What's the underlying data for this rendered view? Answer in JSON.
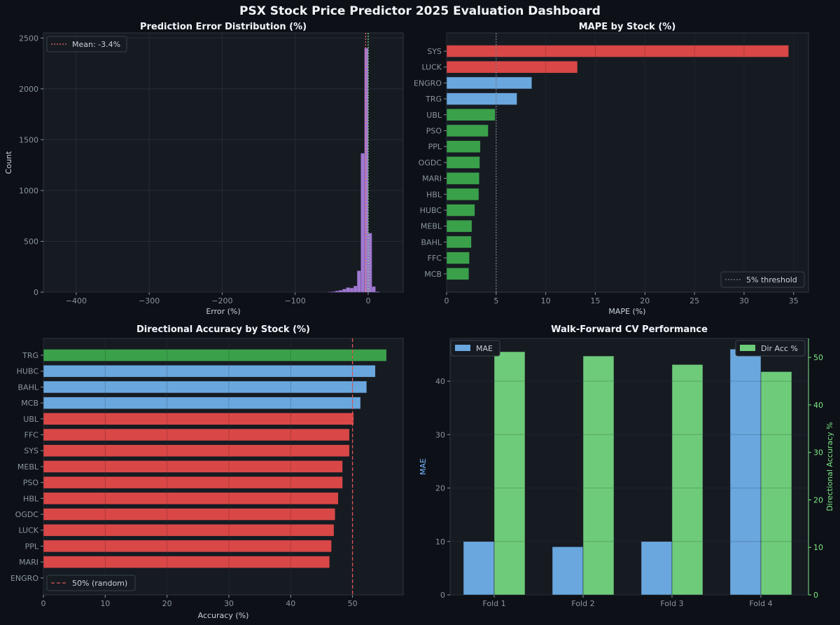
{
  "colors": {
    "background": "#0d1117",
    "panel": "#161b22",
    "text": "#c9d1d9",
    "title": "#f0f6fc",
    "tick": "#8b949e",
    "red": "#da4747",
    "blue": "#6aa7de",
    "green": "#3aa14a",
    "light_green": "#6ecb7a",
    "purple": "#a07ad0",
    "green_axis": "#7ee787",
    "blue_axis": "#79b8ff"
  },
  "dashboard_title": "PSX Stock Price Predictor  2025 Evaluation Dashboard",
  "chart_data": [
    {
      "type": "histogram",
      "title": "Prediction Error Distribution (%)",
      "xlabel": "Error (%)",
      "ylabel": "Count",
      "xlim": [
        -445,
        48
      ],
      "ylim": [
        0,
        2550
      ],
      "xticks": [
        -400,
        -300,
        -200,
        -100,
        0
      ],
      "xtick_labels": [
        "−400",
        "−300",
        "−200",
        "−100",
        "0"
      ],
      "yticks": [
        0,
        500,
        1000,
        1500,
        2000,
        2500
      ],
      "legend": "top-left",
      "mean_line": {
        "label": "Mean: -3.4%",
        "value": -3.4
      },
      "median_value": 0,
      "bins": {
        "x": [
          -52.5,
          -47.5,
          -42.5,
          -37.5,
          -32.5,
          -27.5,
          -22.5,
          -17.5,
          -12.5,
          -7.5,
          -2.5,
          2.5,
          7.5,
          12.5
        ],
        "values": [
          2,
          5,
          12,
          18,
          30,
          45,
          40,
          60,
          210,
          1365,
          2400,
          580,
          55,
          5
        ]
      }
    },
    {
      "type": "bar",
      "orientation": "horizontal",
      "title": "MAPE by Stock (%)",
      "xlabel": "MAPE (%)",
      "xlim": [
        0,
        36.5
      ],
      "xticks": [
        0,
        5,
        10,
        15,
        20,
        25,
        30,
        35
      ],
      "legend": "bottom-right",
      "threshold": {
        "label": "5% threshold",
        "value": 5
      },
      "categories": [
        "SYS",
        "LUCK",
        "ENGRO",
        "TRG",
        "UBL",
        "PSO",
        "PPL",
        "OGDC",
        "MARI",
        "HBL",
        "HUBC",
        "MEBL",
        "BAHL",
        "FFC",
        "MCB"
      ],
      "values": [
        34.5,
        13.2,
        8.6,
        7.1,
        4.9,
        4.2,
        3.4,
        3.35,
        3.3,
        3.25,
        2.85,
        2.55,
        2.5,
        2.3,
        2.25
      ],
      "bar_colors": [
        "red",
        "red",
        "blue",
        "blue",
        "green",
        "green",
        "green",
        "green",
        "green",
        "green",
        "green",
        "green",
        "green",
        "green",
        "green"
      ]
    },
    {
      "type": "bar",
      "orientation": "horizontal",
      "title": "Directional Accuracy by Stock (%)",
      "xlabel": "Accuracy (%)",
      "xlim": [
        0,
        58.2
      ],
      "xticks": [
        0,
        10,
        20,
        30,
        40,
        50
      ],
      "legend": "bottom-left",
      "threshold": {
        "label": "50% (random)",
        "value": 50
      },
      "categories": [
        "TRG",
        "HUBC",
        "BAHL",
        "MCB",
        "UBL",
        "FFC",
        "SYS",
        "MEBL",
        "PSO",
        "HBL",
        "OGDC",
        "LUCK",
        "PPL",
        "MARI",
        "ENGRO"
      ],
      "values": [
        55.5,
        53.7,
        52.3,
        51.3,
        50.2,
        49.5,
        49.5,
        48.4,
        48.4,
        47.7,
        47.2,
        47.0,
        46.6,
        46.3,
        0
      ],
      "bar_colors": [
        "green",
        "blue",
        "blue",
        "blue",
        "red",
        "red",
        "red",
        "red",
        "red",
        "red",
        "red",
        "red",
        "red",
        "red",
        "red"
      ]
    },
    {
      "type": "bar",
      "title": "Walk-Forward CV Performance",
      "categories": [
        "Fold 1",
        "Fold 2",
        "Fold 3",
        "Fold 4"
      ],
      "ylabel_left": "MAE",
      "ylabel_right": "Directional Accuracy %",
      "ylim_left": [
        0,
        48
      ],
      "ylim_right": [
        0,
        54
      ],
      "yticks_left": [
        0,
        10,
        20,
        30,
        40
      ],
      "yticks_right": [
        0,
        10,
        20,
        30,
        40,
        50
      ],
      "series": [
        {
          "name": "MAE",
          "axis": "left",
          "values": [
            10,
            9,
            10,
            46
          ]
        },
        {
          "name": "Dir Acc %",
          "axis": "right",
          "values": [
            51.2,
            50.3,
            48.5,
            47.0
          ]
        }
      ],
      "legend_left": "top-left",
      "legend_right": "top-right"
    }
  ]
}
